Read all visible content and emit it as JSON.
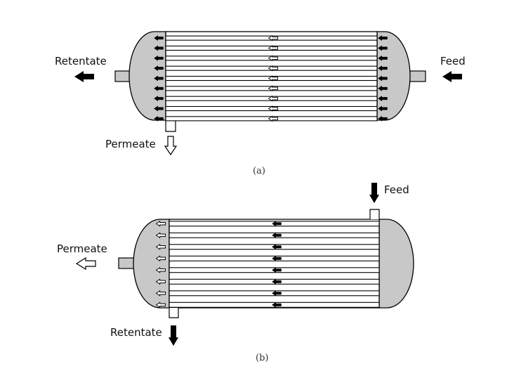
{
  "colors": {
    "head_fill": "#c8c8c8",
    "line": "#000000",
    "filled_arrow": "#000000",
    "hollow_arrow": "#ffffff"
  },
  "diagram_a": {
    "labels": {
      "retentate": "Retentate",
      "feed": "Feed",
      "permeate": "Permeate"
    },
    "caption": "(a)",
    "tube_count": 9,
    "core_arrow": "hollow-left-arrow",
    "head_arrow": "filled-left-arrow"
  },
  "diagram_b": {
    "labels": {
      "feed": "Feed",
      "permeate": "Permeate",
      "retentate": "Retentate"
    },
    "caption": "(b)",
    "tube_count": 8,
    "core_arrow": "filled-left-arrow",
    "head_arrow": "hollow-left-arrow"
  }
}
